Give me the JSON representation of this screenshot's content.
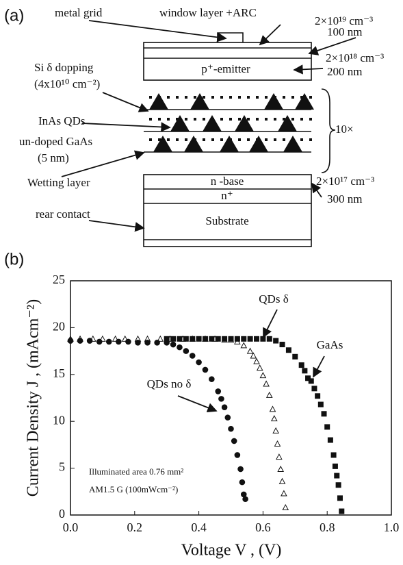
{
  "panel_a": {
    "label": "(a)",
    "metal_grid": "metal grid",
    "window_layer": "window layer +ARC",
    "window_doping": "2×10¹⁹ cm⁻³",
    "window_thickness": "100 nm",
    "emitter_doping": "2×10¹⁸ cm⁻³",
    "emitter_thickness": "200 nm",
    "emitter": "p⁺-emitter",
    "si_doping": "Si δ dopping",
    "si_density": "(4x10¹⁰ cm⁻²)",
    "inas_qds": "InAs QDs",
    "undoped_gaas": "un-doped GaAs",
    "undoped_thickness": "(5 nm)",
    "repeat": "10×",
    "wetting_layer": "Wetting layer",
    "base": "n -base",
    "n_plus": "n⁺",
    "base_doping": "2×10¹⁷ cm⁻³",
    "base_thickness": "300 nm",
    "rear_contact": "rear contact",
    "substrate": "Substrate"
  },
  "chart_data": {
    "type": "scatter",
    "label": "(b)",
    "x_label": "Voltage V , (V)",
    "y_label": "Current Density J , (mAcm⁻²)",
    "annotations": [
      "Illuminated area 0.76 mm²",
      "AM1.5 G (100mWcm⁻²)"
    ],
    "xlim": [
      0,
      1
    ],
    "ylim": [
      0,
      25
    ],
    "xticks": [
      {
        "value": 0,
        "label": "0.0"
      },
      0.2,
      0.4,
      0.6,
      0.8,
      {
        "value": 1,
        "label": "1.0"
      }
    ],
    "yticks": [
      0,
      5,
      10,
      15,
      20,
      25
    ],
    "series": [
      {
        "name": "GaAs",
        "color": "#111111",
        "marker": "square",
        "filled": true,
        "x": [
          0.3,
          0.32,
          0.34,
          0.36,
          0.38,
          0.4,
          0.42,
          0.44,
          0.46,
          0.48,
          0.5,
          0.52,
          0.54,
          0.56,
          0.58,
          0.6,
          0.62,
          0.64,
          0.66,
          0.68,
          0.7,
          0.72,
          0.73,
          0.74,
          0.75,
          0.76,
          0.77,
          0.78,
          0.79,
          0.8,
          0.81,
          0.82,
          0.825,
          0.83,
          0.835,
          0.84,
          0.845
        ],
        "values": [
          18.8,
          18.8,
          18.8,
          18.8,
          18.8,
          18.8,
          18.8,
          18.8,
          18.8,
          18.8,
          18.8,
          18.8,
          18.8,
          18.8,
          18.8,
          18.8,
          18.8,
          18.6,
          18.2,
          17.6,
          16.9,
          16.0,
          15.4,
          14.6,
          14.3,
          13.5,
          12.7,
          11.8,
          10.8,
          9.4,
          8.0,
          6.4,
          5.2,
          4.2,
          3.2,
          1.8,
          0.4
        ]
      },
      {
        "name": "QDs δ",
        "color": "#111111",
        "marker": "triangle",
        "filled": false,
        "x": [
          0.0,
          0.03,
          0.07,
          0.1,
          0.14,
          0.17,
          0.21,
          0.24,
          0.28,
          0.31,
          0.35,
          0.38,
          0.42,
          0.45,
          0.48,
          0.5,
          0.52,
          0.54,
          0.56,
          0.57,
          0.58,
          0.59,
          0.6,
          0.61,
          0.62,
          0.63,
          0.635,
          0.64,
          0.645,
          0.65,
          0.655,
          0.66,
          0.665,
          0.67
        ],
        "values": [
          18.8,
          18.8,
          18.8,
          18.8,
          18.8,
          18.8,
          18.8,
          18.8,
          18.8,
          18.8,
          18.8,
          18.8,
          18.8,
          18.8,
          18.7,
          18.7,
          18.5,
          18.1,
          17.5,
          17.0,
          16.4,
          15.7,
          14.9,
          14.0,
          12.8,
          11.3,
          10.3,
          9.0,
          7.6,
          6.2,
          4.9,
          3.6,
          2.3,
          0.8
        ]
      },
      {
        "name": "QDs no δ",
        "color": "#111111",
        "marker": "circle",
        "filled": true,
        "x": [
          0.0,
          0.03,
          0.06,
          0.09,
          0.12,
          0.15,
          0.18,
          0.21,
          0.24,
          0.27,
          0.3,
          0.32,
          0.34,
          0.36,
          0.38,
          0.4,
          0.42,
          0.44,
          0.46,
          0.47,
          0.48,
          0.49,
          0.5,
          0.51,
          0.52,
          0.53,
          0.535,
          0.54,
          0.545
        ],
        "values": [
          18.6,
          18.6,
          18.6,
          18.5,
          18.5,
          18.5,
          18.5,
          18.4,
          18.4,
          18.4,
          18.4,
          18.2,
          17.9,
          17.5,
          17.0,
          16.3,
          15.5,
          14.5,
          13.2,
          12.4,
          11.5,
          10.4,
          9.2,
          7.9,
          6.4,
          4.9,
          3.5,
          2.2,
          1.7
        ]
      }
    ]
  }
}
